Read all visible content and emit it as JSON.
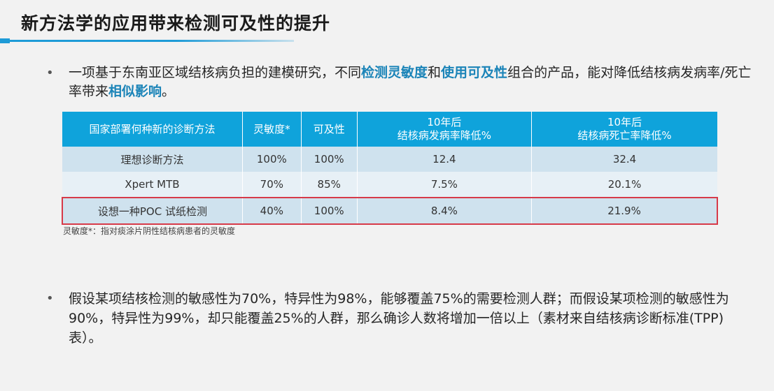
{
  "title": "新方法学的应用带来检测可及性的提升",
  "bullet_glyph": "•",
  "paragraph1": {
    "p1": "一项基于东南亚区域结核病负担的建模研究，不同",
    "h1": "检测灵敏度",
    "p2": "和",
    "h2": "使用可及性",
    "p3": "组合的产品，能对降低结核病发病率/死亡率带来",
    "h3": "相似影响",
    "p4": "。"
  },
  "table": {
    "headers": [
      {
        "line1": "国家部署何种新的诊断方法",
        "line2": ""
      },
      {
        "line1": "灵敏度*",
        "line2": ""
      },
      {
        "line1": "可及性",
        "line2": ""
      },
      {
        "line1": "10年后",
        "line2": "结核病发病率降低%"
      },
      {
        "line1": "10年后",
        "line2": "结核病死亡率降低%"
      }
    ],
    "rows": [
      {
        "method": "理想诊断方法",
        "sensitivity": "100%",
        "accessibility": "100%",
        "incidence": "12.4",
        "mortality": "32.4"
      },
      {
        "method": "Xpert MTB",
        "sensitivity": "70%",
        "accessibility": "85%",
        "incidence": "7.5%",
        "mortality": "20.1%"
      },
      {
        "method": "设想一种POC 试纸检测",
        "sensitivity": "40%",
        "accessibility": "100%",
        "incidence": "8.4%",
        "mortality": "21.9%"
      }
    ]
  },
  "footnote": "灵敏度*：指对痰涂片阴性结核病患者的灵敏度",
  "paragraph2": "假设某项结核检测的敏感性为70%，特异性为98%，能够覆盖75%的需要检测人群；而假设某项检测的敏感性为90%，特异性为99%，却只能覆盖25%的人群，那么确诊人数将增加一倍以上（素材来自结核病诊断标准(TPP)表）。",
  "colors": {
    "accent": "#0fa3db",
    "highlight_text": "#1b84b8",
    "row_highlight_border": "#d73a49"
  }
}
